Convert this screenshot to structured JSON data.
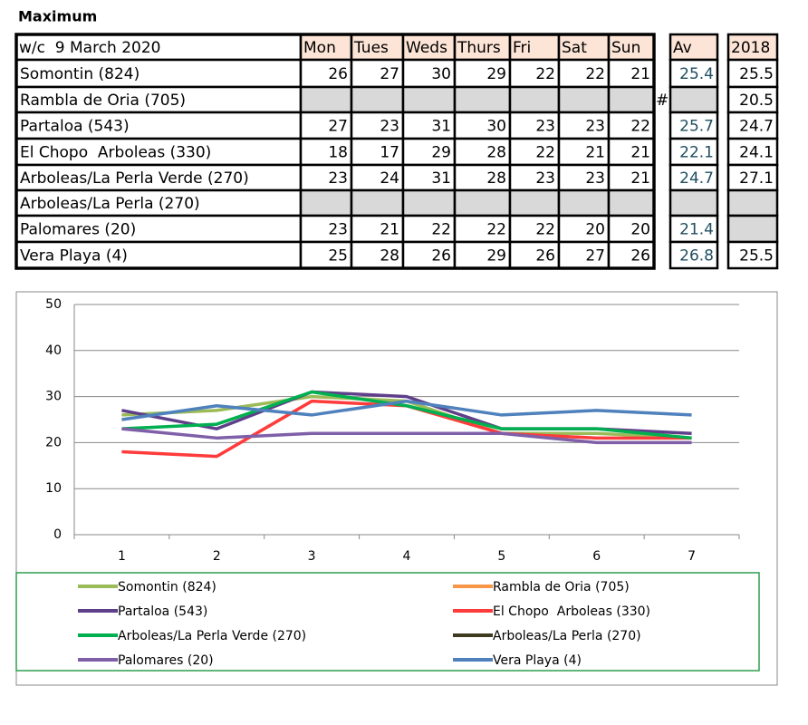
{
  "title": "Maximum",
  "table": {
    "header": [
      "w/c  9 March 2020",
      "Mon",
      "Tues",
      "Weds",
      "Thurs",
      "Fri",
      "Sat",
      "Sun",
      "Av",
      "2018"
    ],
    "rows": [
      {
        "name": "Somontin (824)",
        "values": [
          26,
          27,
          30,
          29,
          22,
          22,
          21
        ],
        "av": 25.4,
        "prev": 25.5
      },
      {
        "name": "Rambla de Oria (705)",
        "values": [
          null,
          null,
          null,
          null,
          null,
          null,
          null
        ],
        "mark": "#",
        "av": null,
        "prev": 20.5
      },
      {
        "name": "Partaloa (543)",
        "values": [
          27,
          23,
          31,
          30,
          23,
          23,
          22
        ],
        "av": 25.7,
        "prev": 24.7
      },
      {
        "name": "El Chopo  Arboleas (330)",
        "values": [
          18,
          17,
          29,
          28,
          22,
          21,
          21
        ],
        "av": 22.1,
        "prev": 24.1
      },
      {
        "name": "Arboleas/La Perla Verde (270)",
        "values": [
          23,
          24,
          31,
          28,
          23,
          23,
          21
        ],
        "av": 24.7,
        "prev": 27.1
      },
      {
        "name": "Arboleas/La Perla (270)",
        "values": [
          null,
          null,
          null,
          null,
          null,
          null,
          null
        ],
        "av": null,
        "prev": null
      },
      {
        "name": "Palomares (20)",
        "values": [
          23,
          21,
          22,
          22,
          22,
          20,
          20
        ],
        "av": 21.4,
        "prev": null
      },
      {
        "name": "Vera Playa (4)",
        "values": [
          25,
          28,
          26,
          29,
          26,
          27,
          26
        ],
        "av": 26.8,
        "prev": 25.5
      }
    ]
  },
  "chart_data": {
    "type": "line",
    "categories": [
      "1",
      "2",
      "3",
      "4",
      "5",
      "6",
      "7"
    ],
    "ylim": [
      0,
      50
    ],
    "yticks": [
      0,
      10,
      20,
      30,
      40,
      50
    ],
    "grid": true,
    "series": [
      {
        "name": "Somontin (824)",
        "color": "#9bbb59",
        "values": [
          26,
          27,
          30,
          29,
          22,
          22,
          21
        ]
      },
      {
        "name": "Rambla de Oria (705)",
        "color": "#f79646",
        "values": [
          null,
          null,
          null,
          null,
          null,
          null,
          null
        ]
      },
      {
        "name": "Partaloa (543)",
        "color": "#5f3f8a",
        "values": [
          27,
          23,
          31,
          30,
          23,
          23,
          22
        ]
      },
      {
        "name": "El Chopo  Arboleas (330)",
        "color": "#ff3b3b",
        "values": [
          18,
          17,
          29,
          28,
          22,
          21,
          21
        ]
      },
      {
        "name": "Arboleas/La Perla Verde (270)",
        "color": "#00b050",
        "values": [
          23,
          24,
          31,
          28,
          23,
          23,
          21
        ]
      },
      {
        "name": "Arboleas/La Perla (270)",
        "color": "#3d3a1e",
        "values": [
          null,
          null,
          null,
          null,
          null,
          null,
          null
        ]
      },
      {
        "name": "Palomares (20)",
        "color": "#7f5fa8",
        "values": [
          23,
          21,
          22,
          22,
          22,
          20,
          20
        ]
      },
      {
        "name": "Vera Playa (4)",
        "color": "#4f81bd",
        "values": [
          25,
          28,
          26,
          29,
          26,
          27,
          26
        ]
      }
    ]
  }
}
